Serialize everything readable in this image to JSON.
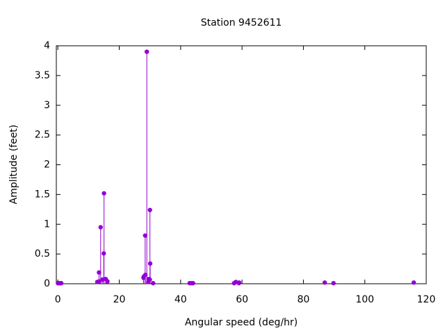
{
  "chart_data": {
    "type": "stem",
    "title": "Station 9452611",
    "x_label": "Angular speed (deg/hr)",
    "y_label": "Amplitude (feet)",
    "color": "#9400d3",
    "x": [
      0.04,
      0.08,
      0.54,
      1.02,
      1.1,
      12.85,
      13.4,
      13.47,
      13.94,
      14.5,
      14.96,
      15.04,
      15.59,
      16.14,
      27.9,
      27.97,
      28.44,
      28.51,
      28.98,
      29.46,
      29.53,
      29.96,
      30.0,
      30.08,
      31.02,
      42.93,
      43.48,
      44.03,
      57.42,
      57.97,
      58.98,
      59.07,
      86.95,
      89.8,
      115.94
    ],
    "values": [
      0.01,
      0.01,
      0.01,
      0.01,
      0.01,
      0.03,
      0.19,
      0.04,
      0.95,
      0.07,
      0.51,
      1.52,
      0.08,
      0.04,
      0.1,
      0.12,
      0.81,
      0.15,
      3.9,
      0.03,
      0.08,
      0.07,
      1.24,
      0.34,
      0.01,
      0.01,
      0.01,
      0.01,
      0.01,
      0.03,
      0.01,
      0.02,
      0.02,
      0.01,
      0.02
    ],
    "xlim": [
      -0.5,
      120
    ],
    "xticks": [
      0,
      20,
      40,
      60,
      80,
      100,
      120
    ],
    "ylim": [
      0,
      4
    ],
    "yticks": [
      0,
      0.5,
      1,
      1.5,
      2,
      2.5,
      3,
      3.5,
      4
    ]
  }
}
